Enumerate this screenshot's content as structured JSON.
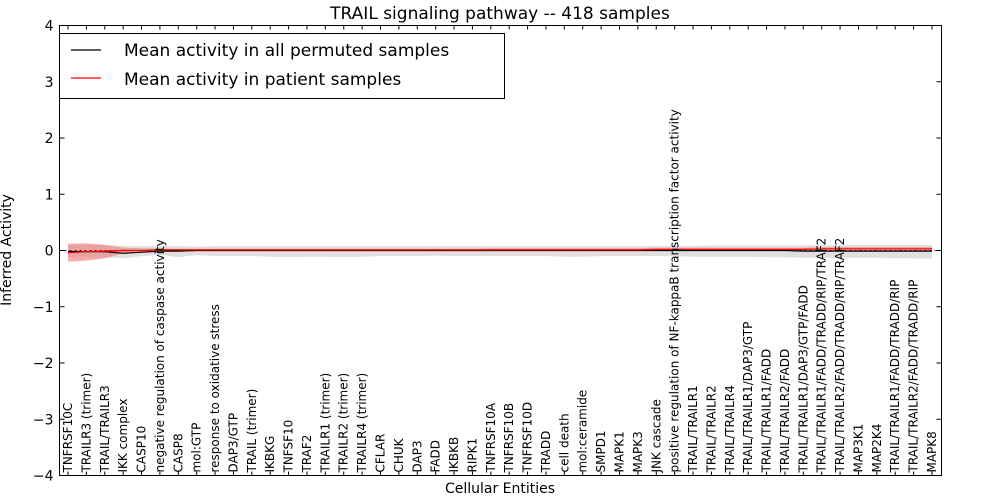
{
  "chart_data": {
    "type": "line",
    "title": "TRAIL signaling pathway -- 418 samples",
    "xlabel": "Cellular Entities",
    "ylabel": "Inferred Activity",
    "ylim": [
      -4,
      4
    ],
    "yticks": [
      -4,
      -3,
      -2,
      -1,
      0,
      1,
      2,
      3,
      4
    ],
    "ytick_labels": [
      "−4",
      "−3",
      "−2",
      "−1",
      "0",
      "1",
      "2",
      "3",
      "4"
    ],
    "grid": false,
    "legend_position": "top-left",
    "categories": [
      "TNFRSF10C",
      "TRAILR3 (trimer)",
      "TRAIL/TRAILR3",
      "IKK complex",
      "CASP10",
      "negative regulation of caspase activity",
      "CASP8",
      "mol:GTP",
      "response to oxidative stress",
      "DAP3/GTP",
      "TRAIL (trimer)",
      "IKBKG",
      "TNFSF10",
      "TRAF2",
      "TRAILR1 (trimer)",
      "TRAILR2 (trimer)",
      "TRAILR4 (trimer)",
      "CFLAR",
      "CHUK",
      "DAP3",
      "FADD",
      "IKBKB",
      "RIPK1",
      "TNFRSF10A",
      "TNFRSF10B",
      "TNFRSF10D",
      "TRADD",
      "cell death",
      "mol:ceramide",
      "SMPD1",
      "MAPK1",
      "MAPK3",
      "JNK cascade",
      "positive regulation of NF-kappaB transcription factor activity",
      "TRAIL/TRAILR1",
      "TRAIL/TRAILR2",
      "TRAIL/TRAILR4",
      "TRAIL/TRAILR1/DAP3/GTP",
      "TRAIL/TRAILR1/FADD",
      "TRAIL/TRAILR2/FADD",
      "TRAIL/TRAILR1/DAP3/GTP/FADD",
      "TRAIL/TRAILR1/FADD/TRADD/RIP/TRAF2",
      "TRAIL/TRAILR2/FADD/TRADD/RIP/TRAF2",
      "MAP3K1",
      "MAP2K4",
      "TRAIL/TRAILR1/FADD/TRADD/RIP",
      "TRAIL/TRAILR2/FADD/TRADD/RIP",
      "MAPK8"
    ],
    "series": [
      {
        "name": "Mean activity in all permuted samples",
        "color": "#000000",
        "band_color": "#bbbbbb",
        "values": [
          -0.02,
          -0.02,
          -0.02,
          -0.05,
          -0.03,
          -0.01,
          -0.01,
          0.0,
          0.0,
          0.0,
          0.0,
          0.0,
          0.0,
          0.0,
          0.0,
          0.0,
          0.0,
          0.0,
          0.0,
          0.0,
          0.0,
          0.0,
          0.0,
          0.0,
          0.0,
          0.0,
          0.0,
          0.0,
          0.0,
          0.0,
          0.0,
          0.0,
          0.0,
          0.0,
          0.0,
          0.0,
          0.0,
          0.0,
          0.0,
          0.0,
          -0.01,
          -0.01,
          -0.01,
          -0.01,
          -0.01,
          -0.01,
          -0.01,
          -0.01
        ],
        "band_lower": [
          -0.12,
          -0.12,
          -0.12,
          -0.14,
          -0.1,
          -0.08,
          -0.12,
          -0.08,
          -0.1,
          -0.1,
          -0.1,
          -0.11,
          -0.12,
          -0.11,
          -0.11,
          -0.12,
          -0.11,
          -0.1,
          -0.1,
          -0.1,
          -0.09,
          -0.1,
          -0.1,
          -0.1,
          -0.1,
          -0.1,
          -0.1,
          -0.11,
          -0.11,
          -0.1,
          -0.1,
          -0.1,
          -0.1,
          -0.1,
          -0.11,
          -0.11,
          -0.11,
          -0.11,
          -0.12,
          -0.12,
          -0.13,
          -0.13,
          -0.13,
          -0.13,
          -0.13,
          -0.14,
          -0.14,
          -0.15
        ],
        "band_upper": [
          0.1,
          0.1,
          0.1,
          0.08,
          0.08,
          0.08,
          0.08,
          0.07,
          0.08,
          0.08,
          0.08,
          0.08,
          0.08,
          0.08,
          0.08,
          0.08,
          0.08,
          0.08,
          0.08,
          0.08,
          0.08,
          0.08,
          0.08,
          0.08,
          0.08,
          0.08,
          0.08,
          0.08,
          0.08,
          0.08,
          0.08,
          0.08,
          0.08,
          0.08,
          0.08,
          0.09,
          0.09,
          0.09,
          0.09,
          0.09,
          0.09,
          0.1,
          0.1,
          0.1,
          0.1,
          0.1,
          0.1,
          0.1
        ]
      },
      {
        "name": "Mean activity in patient samples",
        "color": "#ff0000",
        "band_color": "#f08080",
        "values": [
          -0.04,
          -0.02,
          -0.01,
          0.0,
          0.0,
          0.01,
          0.01,
          0.01,
          0.01,
          0.01,
          0.01,
          0.01,
          0.01,
          0.01,
          0.01,
          0.01,
          0.01,
          0.01,
          0.01,
          0.01,
          0.01,
          0.01,
          0.01,
          0.01,
          0.01,
          0.01,
          0.01,
          0.01,
          0.01,
          0.01,
          0.01,
          0.01,
          0.02,
          0.02,
          0.02,
          0.02,
          0.02,
          0.02,
          0.02,
          0.02,
          0.02,
          0.03,
          0.03,
          0.03,
          0.03,
          0.03,
          0.03,
          0.03
        ],
        "band_lower": [
          -0.2,
          -0.18,
          -0.14,
          -0.05,
          -0.03,
          -0.01,
          -0.01,
          -0.01,
          -0.01,
          -0.01,
          -0.01,
          -0.01,
          -0.01,
          -0.01,
          -0.01,
          -0.01,
          -0.01,
          -0.01,
          -0.01,
          -0.01,
          -0.01,
          -0.01,
          -0.01,
          -0.01,
          -0.01,
          -0.01,
          -0.01,
          -0.01,
          -0.01,
          -0.01,
          -0.01,
          -0.01,
          -0.01,
          0.0,
          0.0,
          0.0,
          0.0,
          0.0,
          0.0,
          0.0,
          0.0,
          0.0,
          0.0,
          0.0,
          0.0,
          0.0,
          0.0,
          0.0
        ],
        "band_upper": [
          0.12,
          0.13,
          0.1,
          0.05,
          0.04,
          0.03,
          0.03,
          0.03,
          0.03,
          0.03,
          0.03,
          0.03,
          0.03,
          0.03,
          0.03,
          0.03,
          0.03,
          0.03,
          0.03,
          0.03,
          0.03,
          0.03,
          0.03,
          0.04,
          0.04,
          0.04,
          0.04,
          0.04,
          0.04,
          0.04,
          0.04,
          0.04,
          0.05,
          0.05,
          0.05,
          0.05,
          0.05,
          0.05,
          0.05,
          0.05,
          0.05,
          0.06,
          0.06,
          0.06,
          0.06,
          0.06,
          0.06,
          0.06
        ]
      }
    ]
  }
}
